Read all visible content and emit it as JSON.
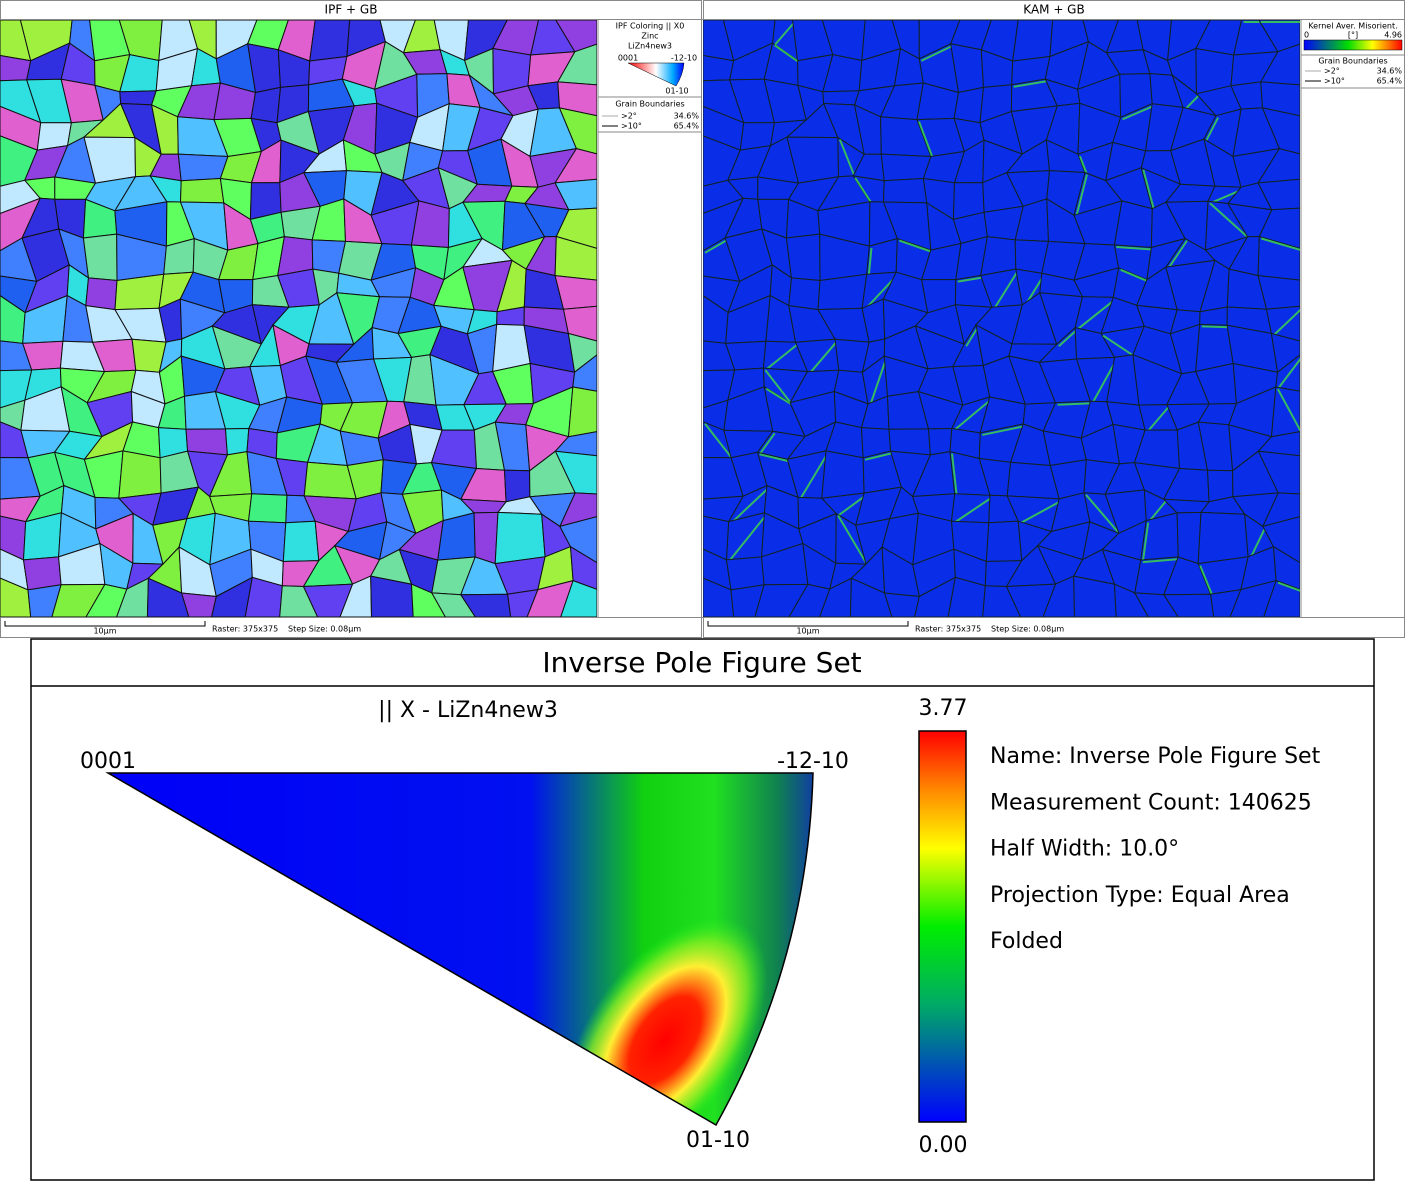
{
  "panels": [
    {
      "title": "IPF + GB",
      "legend": {
        "title": "IPF Coloring || X0",
        "phase": "Zinc",
        "dataset": "LiZn4new3",
        "corners": [
          "0001",
          "-12-10",
          "01-10"
        ],
        "boundaries": {
          "title": "Grain Boundaries",
          "rows": [
            [
              ">2°",
              "34.6%"
            ],
            [
              ">10°",
              "65.4%"
            ]
          ]
        }
      },
      "scale_bar": "10µm",
      "raster": "Raster: 375x375",
      "step": "Step Size: 0.08µm"
    },
    {
      "title": "KAM + GB",
      "legend": {
        "title": "Kernel Aver. Misorient.",
        "min": "0",
        "unit": "[°]",
        "max": "4.96",
        "boundaries": {
          "title": "Grain Boundaries",
          "rows": [
            [
              ">2°",
              "34.6%"
            ],
            [
              ">10°",
              "65.4%"
            ]
          ]
        }
      },
      "scale_bar": "10µm",
      "raster": "Raster: 375x375",
      "step": "Step Size: 0.08µm"
    }
  ],
  "pole_figure": {
    "title": "Inverse Pole Figure Set",
    "subtitle": "|| X - LiZn4new3",
    "corners": [
      "0001",
      "-12-10",
      "01-10"
    ],
    "scale_max": "3.77",
    "scale_min": "0.00",
    "info": [
      "Name: Inverse Pole Figure Set",
      "Measurement Count: 140625",
      "Half Width: 10.0°",
      "Projection Type: Equal Area",
      "Folded"
    ]
  }
}
